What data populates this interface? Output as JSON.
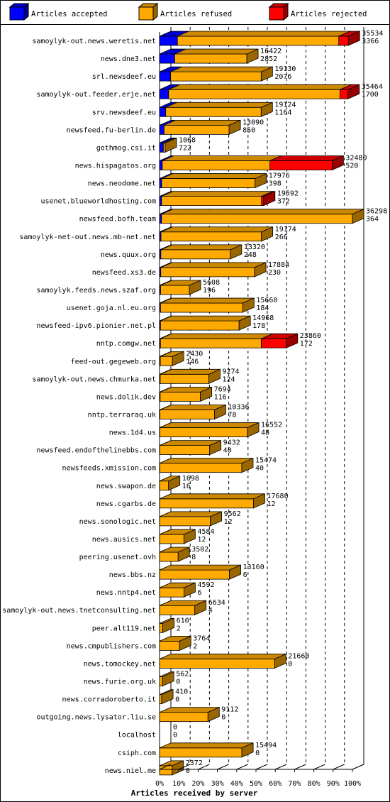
{
  "chart_data": {
    "type": "bar",
    "orientation": "horizontal",
    "stacked": true,
    "three_d": true,
    "xlabel": "Articles received by server",
    "x_ticks": [
      "0%",
      "10%",
      "20%",
      "30%",
      "40%",
      "50%",
      "60%",
      "70%",
      "80%",
      "90%",
      "100%"
    ],
    "x_range": [
      0,
      36298
    ],
    "grid": "vertical-dashed",
    "legend_position": "top",
    "legend": [
      {
        "name": "Articles accepted",
        "color": "#0000ff"
      },
      {
        "name": "Articles refused",
        "color": "#ffaa00"
      },
      {
        "name": "Articles rejected",
        "color": "#ff0000"
      }
    ],
    "rows": [
      {
        "server": "samoylyk-out.news.weretis.net",
        "total": "35534",
        "accepted": "3366",
        "total_v": 35534,
        "accepted_v": 3366,
        "rejected_v": 1800
      },
      {
        "server": "news.dne3.net",
        "total": "16422",
        "accepted": "2852",
        "total_v": 16422,
        "accepted_v": 2852,
        "rejected_v": 0
      },
      {
        "server": "srl.newsdeef.eu",
        "total": "19130",
        "accepted": "2076",
        "total_v": 19130,
        "accepted_v": 2076,
        "rejected_v": 0
      },
      {
        "server": "samoylyk-out.feeder.erje.net",
        "total": "35464",
        "accepted": "1700",
        "total_v": 35464,
        "accepted_v": 1700,
        "rejected_v": 1500
      },
      {
        "server": "srv.newsdeef.eu",
        "total": "19124",
        "accepted": "1164",
        "total_v": 19124,
        "accepted_v": 1164,
        "rejected_v": 0
      },
      {
        "server": "newsfeed.fu-berlin.de",
        "total": "13090",
        "accepted": "850",
        "total_v": 13090,
        "accepted_v": 850,
        "rejected_v": 0
      },
      {
        "server": "gothmog.csi.it",
        "total": "1068",
        "accepted": "722",
        "total_v": 1068,
        "accepted_v": 722,
        "rejected_v": 0
      },
      {
        "server": "news.hispagatos.org",
        "total": "32480",
        "accepted": "520",
        "total_v": 32480,
        "accepted_v": 520,
        "rejected_v": 11700
      },
      {
        "server": "news.neodome.net",
        "total": "17976",
        "accepted": "398",
        "total_v": 17976,
        "accepted_v": 398,
        "rejected_v": 0
      },
      {
        "server": "usenet.blueworldhosting.com",
        "total": "19592",
        "accepted": "372",
        "total_v": 19592,
        "accepted_v": 372,
        "rejected_v": 400
      },
      {
        "server": "newsfeed.bofh.team",
        "total": "36298",
        "accepted": "364",
        "total_v": 36298,
        "accepted_v": 364,
        "rejected_v": 0
      },
      {
        "server": "samoylyk-net-out.news.mb-net.net",
        "total": "19174",
        "accepted": "266",
        "total_v": 19174,
        "accepted_v": 266,
        "rejected_v": 0
      },
      {
        "server": "news.quux.org",
        "total": "13320",
        "accepted": "248",
        "total_v": 13320,
        "accepted_v": 248,
        "rejected_v": 0
      },
      {
        "server": "newsfeed.xs3.de",
        "total": "17884",
        "accepted": "230",
        "total_v": 17884,
        "accepted_v": 230,
        "rejected_v": 0
      },
      {
        "server": "samoylyk.feeds.news.szaf.org",
        "total": "5608",
        "accepted": "196",
        "total_v": 5608,
        "accepted_v": 196,
        "rejected_v": 0
      },
      {
        "server": "usenet.goja.nl.eu.org",
        "total": "15660",
        "accepted": "184",
        "total_v": 15660,
        "accepted_v": 184,
        "rejected_v": 0
      },
      {
        "server": "newsfeed-ipv6.pionier.net.pl",
        "total": "14968",
        "accepted": "178",
        "total_v": 14968,
        "accepted_v": 178,
        "rejected_v": 0
      },
      {
        "server": "nntp.comgw.net",
        "total": "23860",
        "accepted": "172",
        "total_v": 23860,
        "accepted_v": 172,
        "rejected_v": 4700
      },
      {
        "server": "feed-out.gegeweb.org",
        "total": "2430",
        "accepted": "146",
        "total_v": 2430,
        "accepted_v": 146,
        "rejected_v": 0
      },
      {
        "server": "samoylyk-out.news.chmurka.net",
        "total": "9274",
        "accepted": "124",
        "total_v": 9274,
        "accepted_v": 124,
        "rejected_v": 0
      },
      {
        "server": "news.dolik.dev",
        "total": "7694",
        "accepted": "116",
        "total_v": 7694,
        "accepted_v": 116,
        "rejected_v": 0
      },
      {
        "server": "nntp.terraraq.uk",
        "total": "10336",
        "accepted": "78",
        "total_v": 10336,
        "accepted_v": 78,
        "rejected_v": 0
      },
      {
        "server": "news.1d4.us",
        "total": "16552",
        "accepted": "48",
        "total_v": 16552,
        "accepted_v": 48,
        "rejected_v": 0
      },
      {
        "server": "newsfeed.endofthelinebbs.com",
        "total": "9432",
        "accepted": "40",
        "total_v": 9432,
        "accepted_v": 40,
        "rejected_v": 0
      },
      {
        "server": "newsfeeds.xmission.com",
        "total": "15474",
        "accepted": "40",
        "total_v": 15474,
        "accepted_v": 40,
        "rejected_v": 0
      },
      {
        "server": "news.swapon.de",
        "total": "1698",
        "accepted": "16",
        "total_v": 1698,
        "accepted_v": 16,
        "rejected_v": 0
      },
      {
        "server": "news.cgarbs.de",
        "total": "17680",
        "accepted": "12",
        "total_v": 17680,
        "accepted_v": 12,
        "rejected_v": 0
      },
      {
        "server": "news.sonologic.net",
        "total": "9562",
        "accepted": "12",
        "total_v": 9562,
        "accepted_v": 12,
        "rejected_v": 0
      },
      {
        "server": "news.ausics.net",
        "total": "4584",
        "accepted": "12",
        "total_v": 4584,
        "accepted_v": 12,
        "rejected_v": 0
      },
      {
        "server": "peering.usenet.ovh",
        "total": "3502",
        "accepted": "8",
        "total_v": 3502,
        "accepted_v": 8,
        "rejected_v": 0
      },
      {
        "server": "news.bbs.nz",
        "total": "13160",
        "accepted": "6",
        "total_v": 13160,
        "accepted_v": 6,
        "rejected_v": 0
      },
      {
        "server": "news.nntp4.net",
        "total": "4592",
        "accepted": "6",
        "total_v": 4592,
        "accepted_v": 6,
        "rejected_v": 0
      },
      {
        "server": "samoylyk-out.news.tnetconsulting.net",
        "total": "6634",
        "accepted": "4",
        "total_v": 6634,
        "accepted_v": 4,
        "rejected_v": 0
      },
      {
        "server": "peer.alt119.net",
        "total": "610",
        "accepted": "2",
        "total_v": 610,
        "accepted_v": 2,
        "rejected_v": 0
      },
      {
        "server": "news.cmpublishers.com",
        "total": "3764",
        "accepted": "2",
        "total_v": 3764,
        "accepted_v": 2,
        "rejected_v": 0
      },
      {
        "server": "news.tomockey.net",
        "total": "21660",
        "accepted": "0",
        "total_v": 21660,
        "accepted_v": 0,
        "rejected_v": 0
      },
      {
        "server": "news.furie.org.uk",
        "total": "562",
        "accepted": "0",
        "total_v": 562,
        "accepted_v": 0,
        "rejected_v": 0
      },
      {
        "server": "news.corradoroberto.it",
        "total": "410",
        "accepted": "0",
        "total_v": 410,
        "accepted_v": 0,
        "rejected_v": 0
      },
      {
        "server": "outgoing.news.lysator.liu.se",
        "total": "9112",
        "accepted": "0",
        "total_v": 9112,
        "accepted_v": 0,
        "rejected_v": 0
      },
      {
        "server": "localhost",
        "total": "0",
        "accepted": "0",
        "total_v": 0,
        "accepted_v": 0,
        "rejected_v": 0
      },
      {
        "server": "csiph.com",
        "total": "15494",
        "accepted": "0",
        "total_v": 15494,
        "accepted_v": 0,
        "rejected_v": 0
      },
      {
        "server": "news.niel.me",
        "total": "2372",
        "accepted": "0",
        "total_v": 2372,
        "accepted_v": 0,
        "rejected_v": 0
      }
    ]
  }
}
